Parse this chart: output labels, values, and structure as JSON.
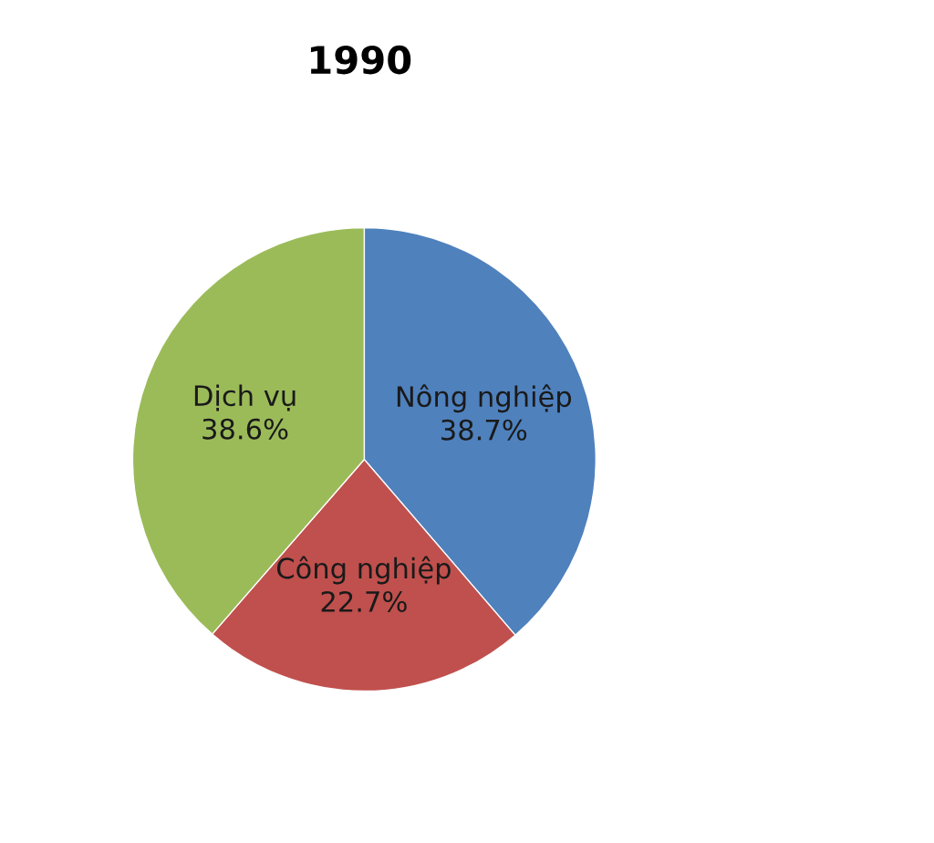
{
  "chart_data": {
    "type": "pie",
    "title": "1990",
    "categories": [
      "Nông nghiệp",
      "Công nghiệp",
      "Dịch vụ"
    ],
    "values": [
      38.7,
      22.7,
      38.6
    ],
    "value_labels": [
      "38.7%",
      "22.7%",
      "38.6%"
    ],
    "colors": [
      "#4f81bd",
      "#c0504d",
      "#9bbb59"
    ],
    "legend": false
  }
}
